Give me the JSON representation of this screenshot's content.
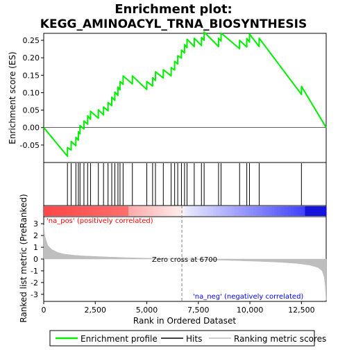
{
  "title": "Enrichment plot:",
  "subtitle": "KEGG_AMINOACYL_TRNA_BIOSYNTHESIS",
  "colors": {
    "es_line": "#00ee00",
    "hits": "#000000",
    "metric_fill": "#bebebe",
    "pos_label": "#ff0000",
    "neg_label": "#0000ff",
    "zero_line": "#808080",
    "gradient_pos": "#ff0000",
    "gradient_neg": "#0000ff"
  },
  "labels": {
    "na_pos": "'na_pos' (positively correlated)",
    "na_neg": "'na_neg' (negatively correlated)",
    "zero_cross": "Zero cross at 6700"
  },
  "legend": {
    "items": [
      {
        "label": "Enrichment profile",
        "kind": "line"
      },
      {
        "label": "Hits",
        "kind": "line"
      },
      {
        "label": "Ranking metric scores",
        "kind": "line"
      }
    ]
  },
  "chart_data": {
    "type": "line",
    "xlabel": "Rank in Ordered Dataset",
    "ylabel_top": "Enrichment score (ES)",
    "ylabel_bottom": "Ranked list metric (PreRanked)",
    "xlim": [
      0,
      13700
    ],
    "x_ticks": [
      0,
      2500,
      5000,
      7500,
      10000,
      12500
    ],
    "x_tick_labels": [
      "0",
      "2,500",
      "5,000",
      "7,500",
      "10,000",
      "12,500"
    ],
    "es_ylim": [
      -0.1,
      0.27
    ],
    "es_ticks": [
      -0.05,
      0.0,
      0.05,
      0.1,
      0.15,
      0.2,
      0.25
    ],
    "es_tick_labels": [
      "-0.05",
      "0.00",
      "0.05",
      "0.10",
      "0.15",
      "0.20",
      "0.25"
    ],
    "metric_ylim": [
      -3.6,
      3.6
    ],
    "metric_ticks": [
      -3,
      -2,
      -1,
      0,
      1,
      2,
      3
    ],
    "metric_tick_labels": [
      "-3",
      "-2",
      "-1",
      "0",
      "1",
      "2",
      "3"
    ],
    "zero_cross": 6700,
    "hits": [
      1150,
      1330,
      1560,
      1680,
      1760,
      1950,
      2130,
      2270,
      2650,
      2900,
      3120,
      3300,
      3450,
      3600,
      3700,
      3850,
      4300,
      5000,
      5280,
      5420,
      5800,
      6180,
      6350,
      6500,
      6680,
      6830,
      6950,
      7300,
      7650,
      7780,
      8480,
      8600,
      9500,
      9850,
      9980,
      10450,
      12500
    ],
    "es_points": [
      [
        0,
        0.0
      ],
      [
        1150,
        -0.082
      ],
      [
        1150,
        -0.057
      ],
      [
        1330,
        -0.064
      ],
      [
        1330,
        -0.04
      ],
      [
        1560,
        -0.052
      ],
      [
        1560,
        -0.028
      ],
      [
        1680,
        -0.036
      ],
      [
        1680,
        -0.012
      ],
      [
        1760,
        -0.018
      ],
      [
        1760,
        0.006
      ],
      [
        1950,
        -0.004
      ],
      [
        1950,
        0.019
      ],
      [
        2130,
        0.01
      ],
      [
        2130,
        0.034
      ],
      [
        2270,
        0.024
      ],
      [
        2270,
        0.047
      ],
      [
        2650,
        0.027
      ],
      [
        2650,
        0.051
      ],
      [
        2900,
        0.036
      ],
      [
        2900,
        0.059
      ],
      [
        3120,
        0.048
      ],
      [
        3120,
        0.072
      ],
      [
        3300,
        0.063
      ],
      [
        3300,
        0.087
      ],
      [
        3450,
        0.078
      ],
      [
        3450,
        0.102
      ],
      [
        3600,
        0.092
      ],
      [
        3600,
        0.116
      ],
      [
        3700,
        0.108
      ],
      [
        3700,
        0.132
      ],
      [
        3850,
        0.124
      ],
      [
        3850,
        0.148
      ],
      [
        4300,
        0.125
      ],
      [
        4300,
        0.148
      ],
      [
        5000,
        0.109
      ],
      [
        5000,
        0.132
      ],
      [
        5280,
        0.119
      ],
      [
        5280,
        0.143
      ],
      [
        5420,
        0.135
      ],
      [
        5420,
        0.16
      ],
      [
        5800,
        0.142
      ],
      [
        5800,
        0.166
      ],
      [
        6180,
        0.148
      ],
      [
        6180,
        0.172
      ],
      [
        6350,
        0.165
      ],
      [
        6350,
        0.19
      ],
      [
        6500,
        0.182
      ],
      [
        6500,
        0.206
      ],
      [
        6680,
        0.199
      ],
      [
        6680,
        0.222
      ],
      [
        6830,
        0.214
      ],
      [
        6830,
        0.238
      ],
      [
        6950,
        0.229
      ],
      [
        6950,
        0.253
      ],
      [
        7300,
        0.232
      ],
      [
        7300,
        0.256
      ],
      [
        7650,
        0.235
      ],
      [
        7650,
        0.258
      ],
      [
        7780,
        0.25
      ],
      [
        7780,
        0.274
      ],
      [
        8480,
        0.232
      ],
      [
        8480,
        0.256
      ],
      [
        8600,
        0.248
      ],
      [
        8600,
        0.271
      ],
      [
        9500,
        0.226
      ],
      [
        9500,
        0.25
      ],
      [
        9850,
        0.231
      ],
      [
        9850,
        0.255
      ],
      [
        9980,
        0.245
      ],
      [
        9980,
        0.268
      ],
      [
        10450,
        0.232
      ],
      [
        10450,
        0.256
      ],
      [
        12500,
        0.095
      ],
      [
        12500,
        0.118
      ],
      [
        13700,
        0.0
      ]
    ],
    "metric_curve": [
      [
        0,
        2.9
      ],
      [
        60,
        1.9
      ],
      [
        200,
        1.15
      ],
      [
        400,
        0.8
      ],
      [
        700,
        0.55
      ],
      [
        1000,
        0.42
      ],
      [
        1500,
        0.32
      ],
      [
        2000,
        0.26
      ],
      [
        3000,
        0.18
      ],
      [
        4000,
        0.12
      ],
      [
        5000,
        0.07
      ],
      [
        6000,
        0.03
      ],
      [
        6700,
        0.0
      ],
      [
        7500,
        -0.04
      ],
      [
        8500,
        -0.09
      ],
      [
        9500,
        -0.14
      ],
      [
        10500,
        -0.2
      ],
      [
        11500,
        -0.28
      ],
      [
        12300,
        -0.38
      ],
      [
        12900,
        -0.52
      ],
      [
        13300,
        -0.72
      ],
      [
        13500,
        -1.0
      ],
      [
        13600,
        -1.5
      ],
      [
        13650,
        -2.2
      ],
      [
        13700,
        -3.5
      ]
    ]
  }
}
